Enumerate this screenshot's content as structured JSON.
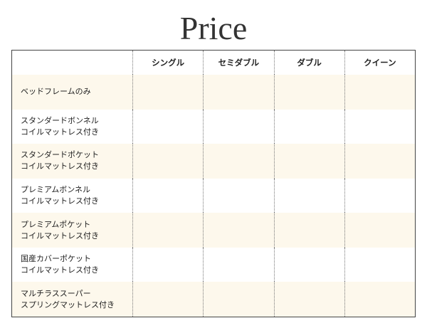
{
  "title": "Price",
  "columns": [
    "",
    "シングル",
    "セミダブル",
    "ダブル",
    "クイーン"
  ],
  "rows": [
    {
      "label": [
        "ベッドフレームのみ"
      ]
    },
    {
      "label": [
        "スタンダードボンネル",
        "コイルマットレス付き"
      ]
    },
    {
      "label": [
        "スタンダードポケット",
        "コイルマットレス付き"
      ]
    },
    {
      "label": [
        "プレミアムボンネル",
        "コイルマットレス付き"
      ]
    },
    {
      "label": [
        "プレミアムポケット",
        "コイルマットレス付き"
      ]
    },
    {
      "label": [
        "国産カバーポケット",
        "コイルマットレス付き"
      ]
    },
    {
      "label": [
        "マルチラススーパー",
        "スプリングマットレス付き"
      ]
    }
  ],
  "colors": {
    "stripe": "#fdf8ec",
    "border": "#444444"
  }
}
